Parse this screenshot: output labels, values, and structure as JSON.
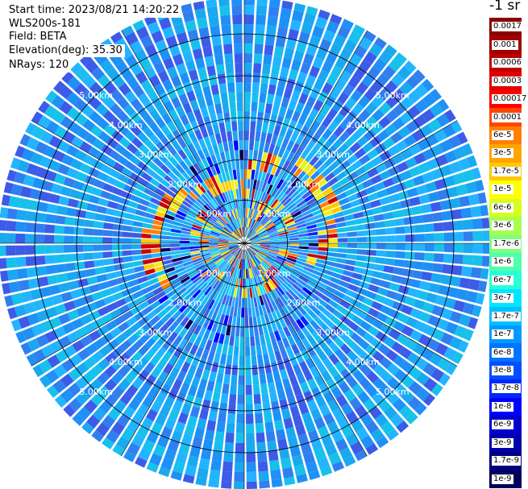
{
  "header": {
    "start_time": "Start time: 2023/08/21 14:20:22",
    "instrument": "WLS200s-181",
    "field": "Field: BETA",
    "elevation": "Elevation(deg): 35.30",
    "nrays": "NRays: 120"
  },
  "colorbar": {
    "unit_label": "-1 sr",
    "ticks": [
      "0.0017",
      "0.001",
      "0.0006",
      "0.0003",
      "0.00017",
      "0.0001",
      "6e-5",
      "3e-5",
      "1.7e-5",
      "1e-5",
      "6e-6",
      "3e-6",
      "1.7e-6",
      "1e-6",
      "6e-7",
      "3e-7",
      "1.7e-7",
      "1e-7",
      "6e-8",
      "3e-8",
      "1.7e-8",
      "1e-8",
      "6e-9",
      "3e-9",
      "1.7e-9",
      "1e-9"
    ],
    "colors": [
      "#8b0000",
      "#a00000",
      "#c00000",
      "#e00000",
      "#ff0000",
      "#ff4500",
      "#ff7f00",
      "#ffa500",
      "#ffc800",
      "#ffff00",
      "#d7ff1e",
      "#a8ff50",
      "#7dff7d",
      "#50ffaa",
      "#28ffd7",
      "#00e6ff",
      "#00c0ff",
      "#009aff",
      "#0074ff",
      "#004eff",
      "#0028ff",
      "#0000ff",
      "#0000d0",
      "#0000a8",
      "#000080",
      "#00005a"
    ]
  },
  "range_rings": {
    "labels": [
      "1.00km",
      "2.00km",
      "3.00km",
      "4.00km",
      "5.00km"
    ]
  },
  "scan": {
    "nrays": 120,
    "background_colors": [
      "#1aa8f0",
      "#2f7fef",
      "#18c0ec",
      "#3c5be8",
      "#23b4ff",
      "#1f90f5"
    ],
    "echo_colors": [
      "#ffcc00",
      "#ff7f00",
      "#e8f020",
      "#cc0000",
      "#00e6ff"
    ]
  }
}
